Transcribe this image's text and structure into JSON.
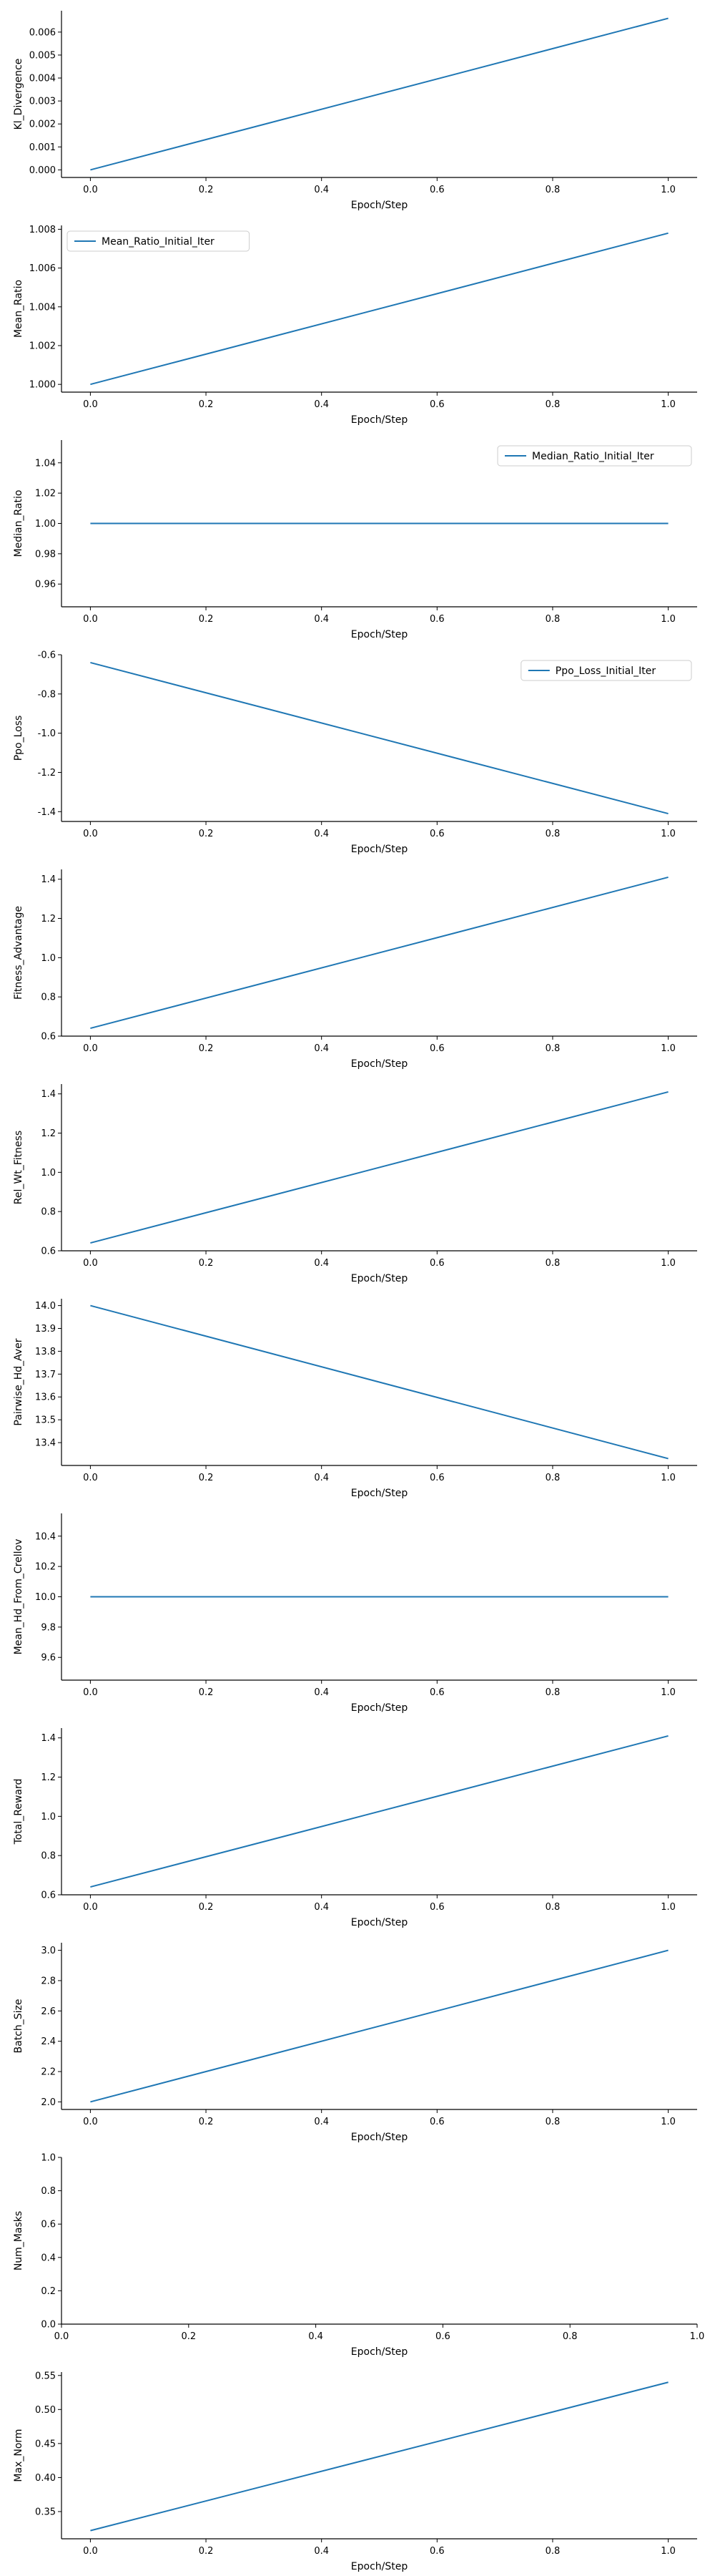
{
  "chart_data": [
    {
      "type": "line",
      "ylabel": "Kl_Divergence",
      "xlabel": "Epoch/Step",
      "xlim": [
        -0.05,
        1.05
      ],
      "ylim": [
        -0.00033,
        0.00693
      ],
      "x_ticks": [
        "0.0",
        "0.2",
        "0.4",
        "0.6",
        "0.8",
        "1.0"
      ],
      "y_ticks": [
        "0.000",
        "0.001",
        "0.002",
        "0.003",
        "0.004",
        "0.005",
        "0.006"
      ],
      "series": [
        {
          "x": [
            0.0,
            1.0
          ],
          "y": [
            0.0,
            0.0066
          ]
        }
      ],
      "legend": null
    },
    {
      "type": "line",
      "ylabel": "Mean_Ratio",
      "xlabel": "Epoch/Step",
      "xlim": [
        -0.05,
        1.05
      ],
      "ylim": [
        0.9996,
        1.0082
      ],
      "x_ticks": [
        "0.0",
        "0.2",
        "0.4",
        "0.6",
        "0.8",
        "1.0"
      ],
      "y_ticks": [
        "1.000",
        "1.002",
        "1.004",
        "1.006",
        "1.008"
      ],
      "series": [
        {
          "name": "Mean_Ratio_Initial_Iter",
          "x": [
            0.0,
            1.0
          ],
          "y": [
            1.0,
            1.0078
          ]
        }
      ],
      "legend": "upper-left"
    },
    {
      "type": "line",
      "ylabel": "Median_Ratio",
      "xlabel": "Epoch/Step",
      "xlim": [
        -0.05,
        1.05
      ],
      "ylim": [
        0.945,
        1.055
      ],
      "x_ticks": [
        "0.0",
        "0.2",
        "0.4",
        "0.6",
        "0.8",
        "1.0"
      ],
      "y_ticks": [
        "0.96",
        "0.98",
        "1.00",
        "1.02",
        "1.04"
      ],
      "series": [
        {
          "name": "Median_Ratio_Initial_Iter",
          "x": [
            0.0,
            1.0
          ],
          "y": [
            1.0,
            1.0
          ]
        }
      ],
      "legend": "upper-right"
    },
    {
      "type": "line",
      "ylabel": "Ppo_Loss",
      "xlabel": "Epoch/Step",
      "xlim": [
        -0.05,
        1.05
      ],
      "ylim": [
        -1.45,
        -0.6
      ],
      "x_ticks": [
        "0.0",
        "0.2",
        "0.4",
        "0.6",
        "0.8",
        "1.0"
      ],
      "y_ticks": [
        "-0.6",
        "-0.8",
        "-1.0",
        "-1.2",
        "-1.4"
      ],
      "series": [
        {
          "name": "Ppo_Loss_Initial_Iter",
          "x": [
            0.0,
            1.0
          ],
          "y": [
            -0.64,
            -1.41
          ]
        }
      ],
      "legend": "upper-right"
    },
    {
      "type": "line",
      "ylabel": "Fitness_Advantage",
      "xlabel": "Epoch/Step",
      "xlim": [
        -0.05,
        1.05
      ],
      "ylim": [
        0.6,
        1.45
      ],
      "x_ticks": [
        "0.0",
        "0.2",
        "0.4",
        "0.6",
        "0.8",
        "1.0"
      ],
      "y_ticks": [
        "0.6",
        "0.8",
        "1.0",
        "1.2",
        "1.4"
      ],
      "series": [
        {
          "x": [
            0.0,
            1.0
          ],
          "y": [
            0.64,
            1.41
          ]
        }
      ],
      "legend": null
    },
    {
      "type": "line",
      "ylabel": "Rel_Wt_Fitness",
      "xlabel": "Epoch/Step",
      "xlim": [
        -0.05,
        1.05
      ],
      "ylim": [
        0.6,
        1.45
      ],
      "x_ticks": [
        "0.0",
        "0.2",
        "0.4",
        "0.6",
        "0.8",
        "1.0"
      ],
      "y_ticks": [
        "0.6",
        "0.8",
        "1.0",
        "1.2",
        "1.4"
      ],
      "series": [
        {
          "x": [
            0.0,
            1.0
          ],
          "y": [
            0.64,
            1.41
          ]
        }
      ],
      "legend": null
    },
    {
      "type": "line",
      "ylabel": "Pairwise_Hd_Aver",
      "xlabel": "Epoch/Step",
      "xlim": [
        -0.05,
        1.05
      ],
      "ylim": [
        13.3,
        14.03
      ],
      "x_ticks": [
        "0.0",
        "0.2",
        "0.4",
        "0.6",
        "0.8",
        "1.0"
      ],
      "y_ticks": [
        "13.4",
        "13.5",
        "13.6",
        "13.7",
        "13.8",
        "13.9",
        "14.0"
      ],
      "series": [
        {
          "x": [
            0.0,
            1.0
          ],
          "y": [
            14.0,
            13.33
          ]
        }
      ],
      "legend": null
    },
    {
      "type": "line",
      "ylabel": "Mean_Hd_From_Crellov",
      "xlabel": "Epoch/Step",
      "xlim": [
        -0.05,
        1.05
      ],
      "ylim": [
        9.45,
        10.55
      ],
      "x_ticks": [
        "0.0",
        "0.2",
        "0.4",
        "0.6",
        "0.8",
        "1.0"
      ],
      "y_ticks": [
        "9.6",
        "9.8",
        "10.0",
        "10.2",
        "10.4"
      ],
      "series": [
        {
          "x": [
            0.0,
            1.0
          ],
          "y": [
            10.0,
            10.0
          ]
        }
      ],
      "legend": null
    },
    {
      "type": "line",
      "ylabel": "Total_Reward",
      "xlabel": "Epoch/Step",
      "xlim": [
        -0.05,
        1.05
      ],
      "ylim": [
        0.6,
        1.45
      ],
      "x_ticks": [
        "0.0",
        "0.2",
        "0.4",
        "0.6",
        "0.8",
        "1.0"
      ],
      "y_ticks": [
        "0.6",
        "0.8",
        "1.0",
        "1.2",
        "1.4"
      ],
      "series": [
        {
          "x": [
            0.0,
            1.0
          ],
          "y": [
            0.64,
            1.41
          ]
        }
      ],
      "legend": null
    },
    {
      "type": "line",
      "ylabel": "Batch_Size",
      "xlabel": "Epoch/Step",
      "xlim": [
        -0.05,
        1.05
      ],
      "ylim": [
        1.95,
        3.05
      ],
      "x_ticks": [
        "0.0",
        "0.2",
        "0.4",
        "0.6",
        "0.8",
        "1.0"
      ],
      "y_ticks": [
        "2.0",
        "2.2",
        "2.4",
        "2.6",
        "2.8",
        "3.0"
      ],
      "series": [
        {
          "x": [
            0.0,
            1.0
          ],
          "y": [
            2.0,
            3.0
          ]
        }
      ],
      "legend": null
    },
    {
      "type": "line",
      "ylabel": "Num_Masks",
      "xlabel": "Epoch/Step",
      "xlim": [
        0.0,
        1.0
      ],
      "ylim": [
        0.0,
        1.0
      ],
      "x_ticks": [
        "0.0",
        "0.2",
        "0.4",
        "0.6",
        "0.8",
        "1.0"
      ],
      "y_ticks": [
        "0.0",
        "0.2",
        "0.4",
        "0.6",
        "0.8",
        "1.0"
      ],
      "series": [],
      "legend": null
    },
    {
      "type": "line",
      "ylabel": "Max_Norm",
      "xlabel": "Epoch/Step",
      "xlim": [
        -0.05,
        1.05
      ],
      "ylim": [
        0.31,
        0.555
      ],
      "x_ticks": [
        "0.0",
        "0.2",
        "0.4",
        "0.6",
        "0.8",
        "1.0"
      ],
      "y_ticks": [
        "0.35",
        "0.40",
        "0.45",
        "0.50",
        "0.55"
      ],
      "series": [
        {
          "x": [
            0.0,
            1.0
          ],
          "y": [
            0.322,
            0.54
          ]
        }
      ],
      "legend": null
    }
  ],
  "style": {
    "line_color": "#1f77b4",
    "axis_color": "#000000"
  }
}
